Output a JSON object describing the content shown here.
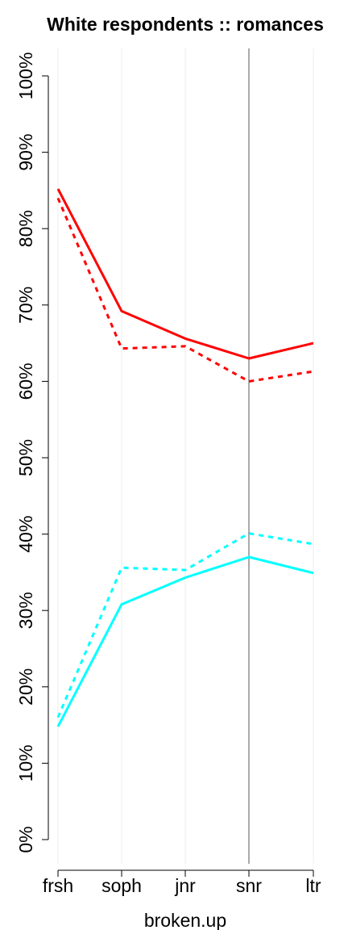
{
  "chart_data": {
    "type": "line",
    "title": "White respondents :: romances",
    "xlabel": "broken.up",
    "ylabel": "",
    "categories": [
      "frsh",
      "soph",
      "jnr",
      "snr",
      "ltr"
    ],
    "ylim": [
      0,
      100
    ],
    "yticks": [
      "0%",
      "10%",
      "20%",
      "30%",
      "40%",
      "50%",
      "60%",
      "70%",
      "80%",
      "90%",
      "100%"
    ],
    "reference_line_category": "snr",
    "grid": "vertical",
    "series": [
      {
        "color": "#ff0000",
        "style": "solid",
        "values": [
          85.2,
          69.2,
          65.6,
          63.0,
          65.0
        ]
      },
      {
        "color": "#ff0000",
        "style": "dashed",
        "values": [
          84.0,
          64.3,
          64.6,
          60.0,
          61.3
        ]
      },
      {
        "color": "#00ffff",
        "style": "solid",
        "values": [
          14.8,
          30.8,
          34.3,
          37.0,
          34.9
        ]
      },
      {
        "color": "#00ffff",
        "style": "dashed",
        "values": [
          16.0,
          35.6,
          35.3,
          40.1,
          38.7
        ]
      }
    ]
  }
}
